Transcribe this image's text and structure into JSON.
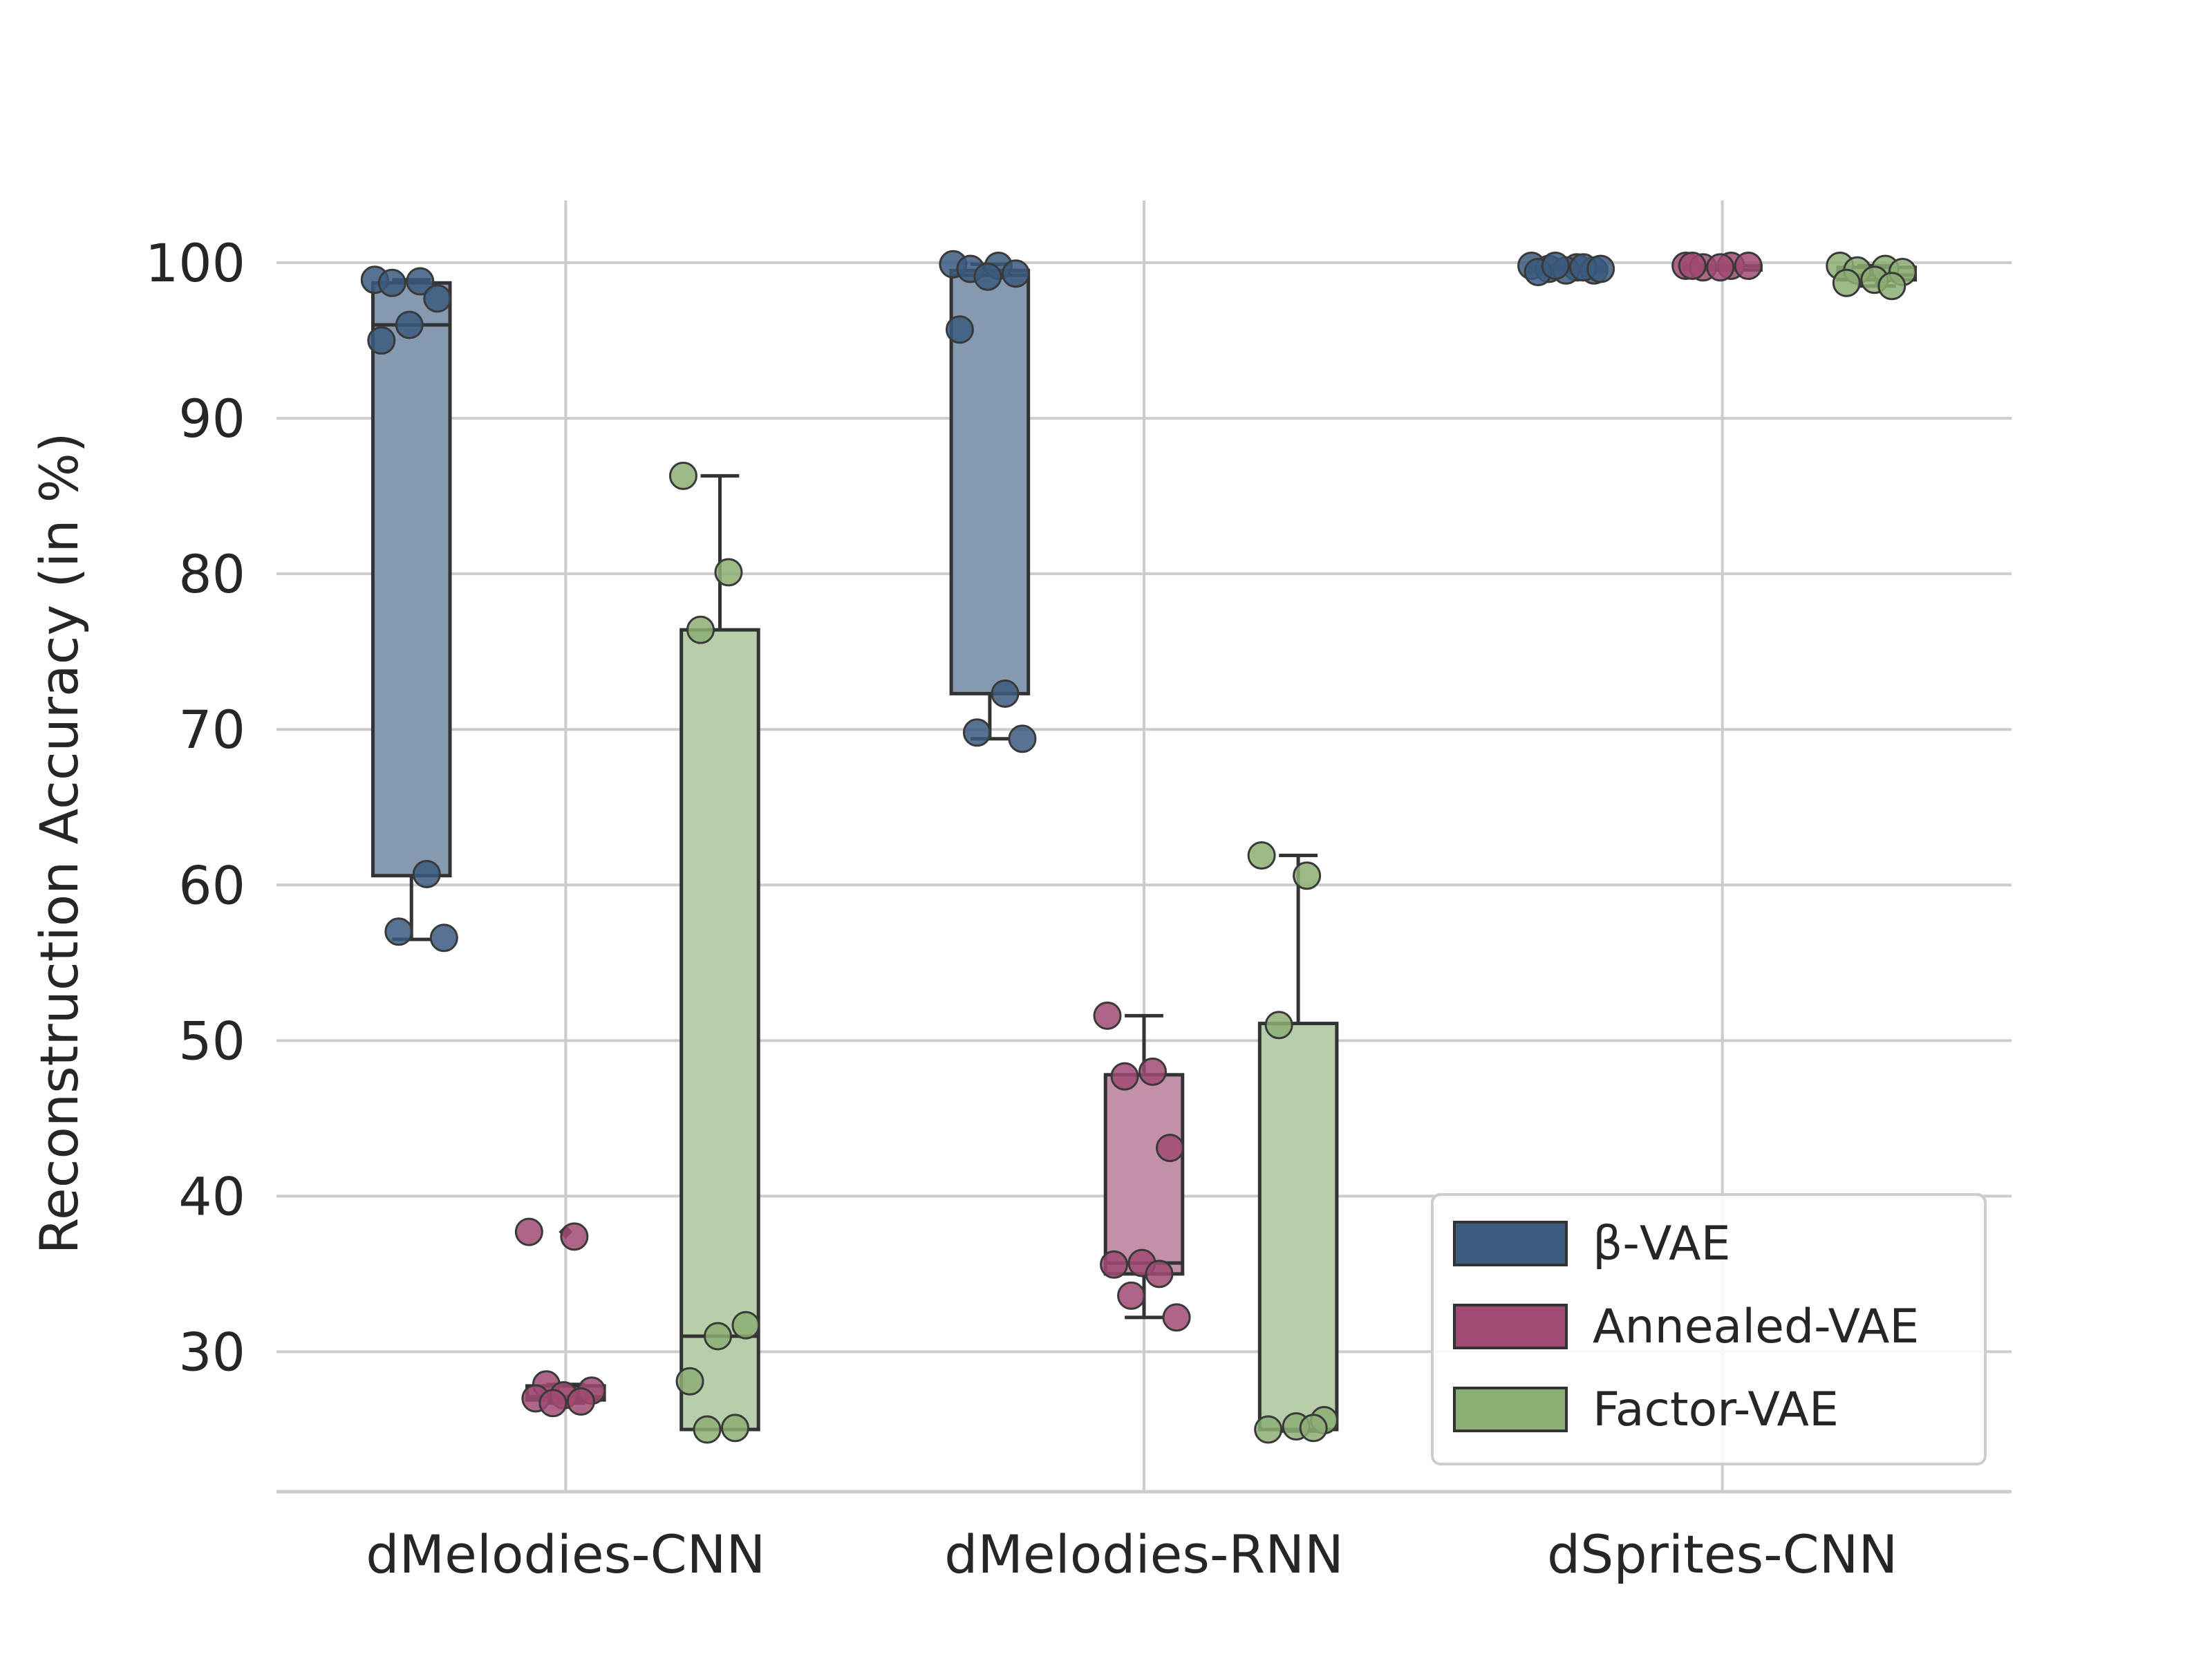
{
  "chart_data": {
    "type": "box",
    "title": "",
    "xlabel": "",
    "ylabel": "Reconstruction Accuracy (in %)",
    "ylim": [
      21,
      104
    ],
    "yticks": [
      30,
      40,
      50,
      60,
      70,
      80,
      90,
      100
    ],
    "grid": true,
    "legend": "lower-right",
    "categories": [
      "dMelodies-CNN",
      "dMelodies-RNN",
      "dSprites-CNN"
    ],
    "series": [
      {
        "name": "β-VAE",
        "color": "#3b5b7f",
        "boxes": [
          {
            "whisker_low": 56.5,
            "q1": 60.6,
            "median": 96.0,
            "q3": 98.7,
            "whisker_high": 98.9,
            "outliers": [],
            "points": [
              98.9,
              98.8,
              98.7,
              97.7,
              96.0,
              95.0,
              60.7,
              57.0,
              56.6
            ]
          },
          {
            "whisker_low": 69.4,
            "q1": 72.3,
            "median": 99.2,
            "q3": 99.5,
            "whisker_high": 99.9,
            "outliers": [],
            "points": [
              99.9,
              99.8,
              99.6,
              99.3,
              99.1,
              95.7,
              72.3,
              69.8,
              69.4
            ]
          },
          {
            "whisker_low": 99.4,
            "q1": 99.5,
            "median": 99.6,
            "q3": 99.7,
            "whisker_high": 99.8,
            "outliers": [],
            "points": [
              99.8,
              99.7,
              99.6,
              99.5,
              99.5,
              99.4,
              99.7,
              99.8,
              99.6
            ]
          }
        ]
      },
      {
        "name": "Annealed-VAE",
        "color": "#a04a72",
        "boxes": [
          {
            "whisker_low": 26.7,
            "q1": 26.9,
            "median": 27.1,
            "q3": 27.8,
            "whisker_high": 27.9,
            "outliers": [
              37.7
            ],
            "points": [
              37.7,
              37.4,
              27.9,
              27.5,
              27.2,
              27.0,
              26.8,
              26.7
            ]
          },
          {
            "whisker_low": 32.2,
            "q1": 35.0,
            "median": 35.7,
            "q3": 47.8,
            "whisker_high": 51.6,
            "outliers": [],
            "points": [
              51.6,
              48.0,
              47.7,
              43.1,
              35.7,
              35.6,
              35.0,
              33.6,
              32.2
            ]
          },
          {
            "whisker_low": 99.7,
            "q1": 99.7,
            "median": 99.8,
            "q3": 99.8,
            "whisker_high": 99.8,
            "outliers": [],
            "points": [
              99.8,
              99.8,
              99.7,
              99.8,
              99.7,
              99.8
            ]
          }
        ]
      },
      {
        "name": "Factor-VAE",
        "color": "#8cae74",
        "boxes": [
          {
            "whisker_low": 25.0,
            "q1": 25.0,
            "median": 31.0,
            "q3": 76.4,
            "whisker_high": 86.3,
            "outliers": [],
            "points": [
              86.3,
              80.1,
              76.4,
              31.7,
              31.0,
              28.1,
              25.1,
              25.0
            ]
          },
          {
            "whisker_low": 24.9,
            "q1": 25.0,
            "median": 25.0,
            "q3": 51.1,
            "whisker_high": 61.9,
            "outliers": [],
            "points": [
              61.9,
              60.6,
              51.0,
              25.6,
              25.2,
              25.0,
              25.1
            ]
          },
          {
            "whisker_low": 98.5,
            "q1": 98.9,
            "median": 99.2,
            "q3": 99.7,
            "whisker_high": 99.8,
            "outliers": [],
            "points": [
              99.8,
              99.6,
              99.5,
              99.4,
              98.9,
              98.7,
              98.5
            ]
          }
        ]
      }
    ]
  }
}
